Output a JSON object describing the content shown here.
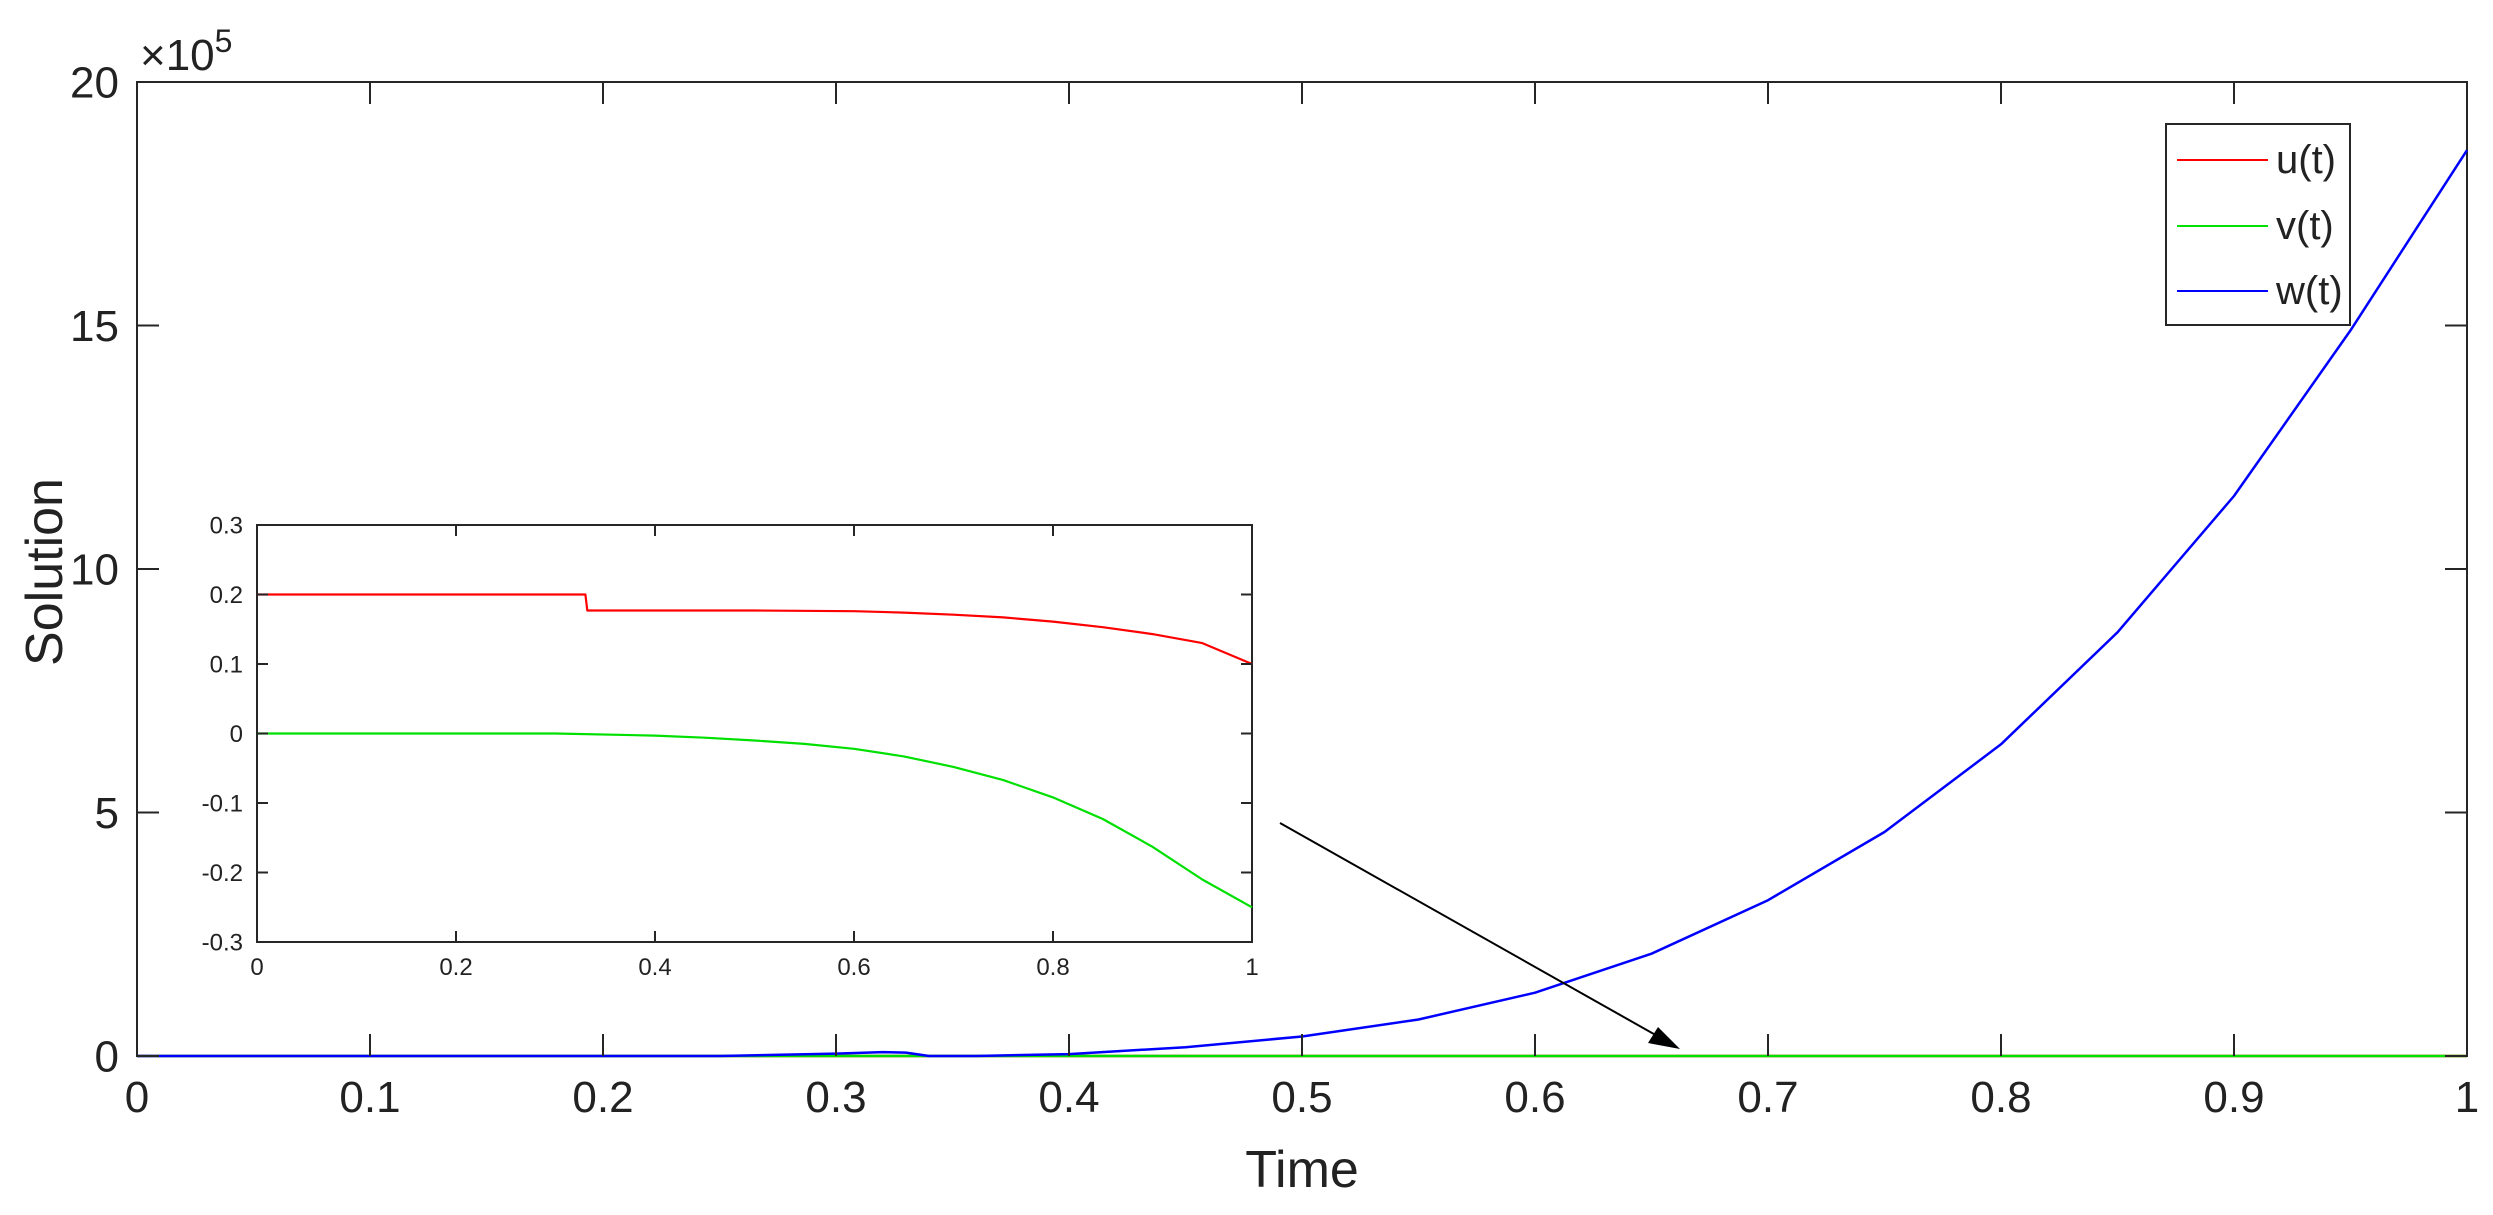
{
  "chart_data": [
    {
      "type": "line",
      "role": "main",
      "xlabel": "Time",
      "ylabel": "Solution",
      "xlim": [
        0,
        1
      ],
      "ylim": [
        0,
        20
      ],
      "y_exponent_label": "×10",
      "y_exponent_power": "5",
      "x_ticks": [
        "0",
        "0.1",
        "0.2",
        "0.3",
        "0.4",
        "0.5",
        "0.6",
        "0.7",
        "0.8",
        "0.9",
        "1"
      ],
      "y_ticks": [
        "0",
        "5",
        "10",
        "15",
        "20"
      ],
      "legend_position": "top-right",
      "grid": false,
      "series": [
        {
          "name": "u(t)",
          "color": "#ff0000",
          "x": [
            0,
            0.33,
            0.34,
            1
          ],
          "y": [
            2e-06,
            2e-06,
            1.7e-06,
            1e-06
          ]
        },
        {
          "name": "v(t)",
          "color": "#00e000",
          "x": [
            0,
            0.3,
            0.6,
            1
          ],
          "y": [
            0.0,
            0.0,
            -1e-06,
            -3e-06
          ]
        },
        {
          "name": "w(t)",
          "color": "#0000ff",
          "x": [
            0,
            0.25,
            0.3,
            0.32,
            0.33,
            0.34,
            0.36,
            0.4,
            0.45,
            0.5,
            0.55,
            0.6,
            0.65,
            0.7,
            0.75,
            0.8,
            0.85,
            0.9,
            0.95,
            1.0
          ],
          "y": [
            0.0,
            0.0,
            0.05,
            0.08,
            0.07,
            -0.03,
            -0.02,
            0.04,
            0.18,
            0.4,
            0.75,
            1.3,
            2.1,
            3.2,
            4.6,
            6.4,
            8.7,
            11.5,
            14.9,
            18.6
          ]
        }
      ]
    },
    {
      "type": "line",
      "role": "inset",
      "xlim": [
        0,
        1
      ],
      "ylim": [
        -0.3,
        0.3
      ],
      "x_ticks": [
        "0",
        "0.2",
        "0.4",
        "0.6",
        "0.8",
        "1"
      ],
      "y_ticks": [
        "-0.3",
        "-0.2",
        "-0.1",
        "0",
        "0.1",
        "0.2",
        "0.3"
      ],
      "series": [
        {
          "name": "u(t)",
          "color": "#ff0000",
          "x": [
            0,
            0.1,
            0.2,
            0.3,
            0.33,
            0.332,
            0.4,
            0.5,
            0.6,
            0.65,
            0.7,
            0.75,
            0.8,
            0.85,
            0.9,
            0.95,
            1.0
          ],
          "y": [
            0.2,
            0.2,
            0.2,
            0.2,
            0.2,
            0.177,
            0.177,
            0.177,
            0.176,
            0.174,
            0.171,
            0.167,
            0.161,
            0.153,
            0.143,
            0.13,
            0.1
          ]
        },
        {
          "name": "v(t)",
          "color": "#00e000",
          "x": [
            0,
            0.1,
            0.2,
            0.3,
            0.4,
            0.45,
            0.5,
            0.55,
            0.6,
            0.65,
            0.7,
            0.75,
            0.8,
            0.85,
            0.9,
            0.95,
            1.0
          ],
          "y": [
            0.0,
            0.0,
            0.0,
            0.0,
            -0.003,
            -0.006,
            -0.01,
            -0.015,
            -0.022,
            -0.033,
            -0.048,
            -0.067,
            -0.092,
            -0.123,
            -0.163,
            -0.21,
            -0.25
          ]
        }
      ]
    }
  ]
}
